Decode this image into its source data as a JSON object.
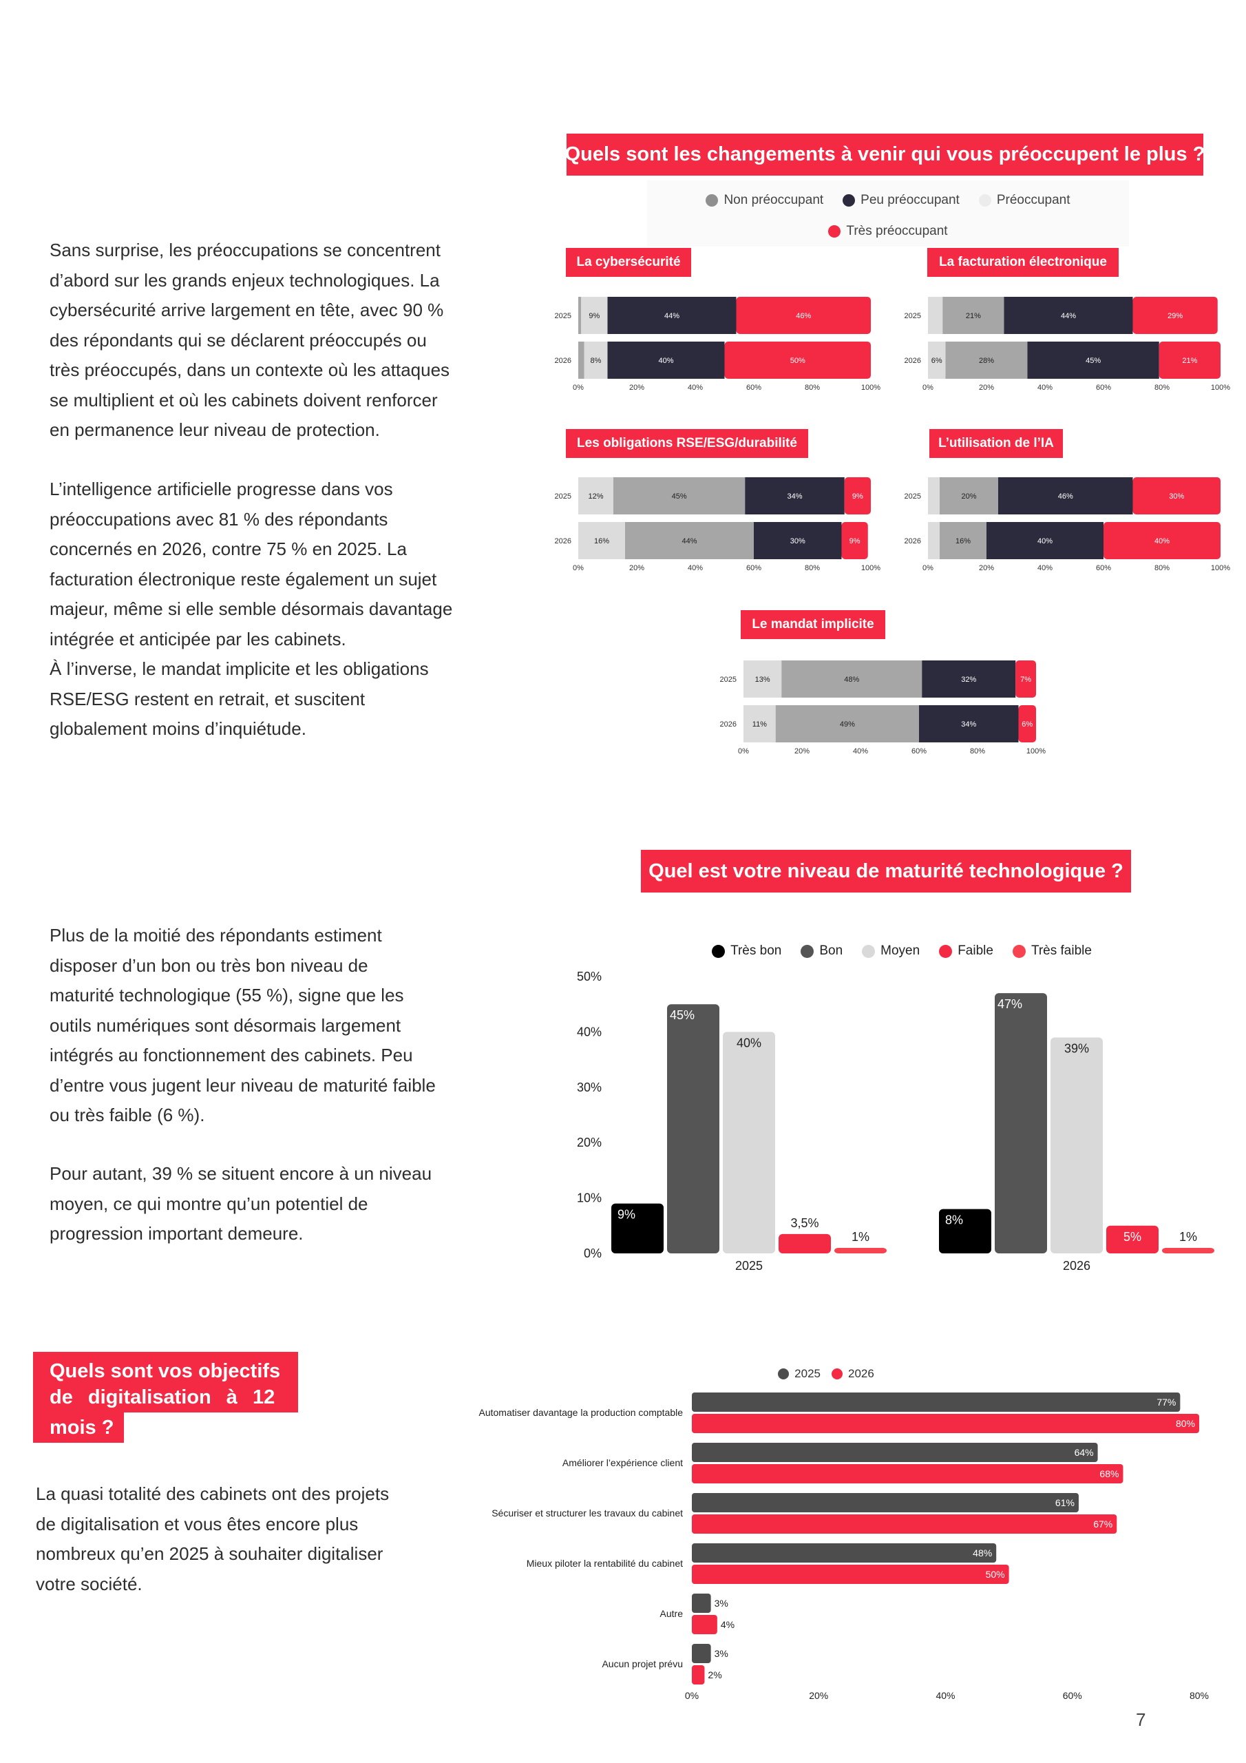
{
  "colors": {
    "accent": "#f42a45",
    "non_preoccupant": "#a6a6a6",
    "peu_preoccupant": "#2b2b3d",
    "preoccupant": "#dcdcdc",
    "tres_preoccupant": "#f42a45"
  },
  "section1": {
    "paragraph1": "Sans surprise, les préoccupations se concentrent\nd’abord sur les grands enjeux technologiques. La\ncybersécurité arrive largement en tête, avec 90 %\ndes répondants qui se déclarent préoccupés ou\ntrès préoccupés, dans un contexte où les attaques\nse multiplient et où les cabinets doivent renforcer\nen permanence leur niveau de protection.",
    "paragraph2": "L’intelligence artificielle progresse dans vos\npréoccupations avec 81 % des répondants\nconcernés en 2026, contre 75 % en 2025. La\nfacturation électronique reste également un sujet\nmajeur, même si elle semble désormais davantage\nintégrée et anticipée par les cabinets.\nÀ l’inverse, le mandat implicite et les obligations\nRSE/ESG restent en retrait, et suscitent\nglobalement moins d’inquiétude.",
    "question": "Quels sont les changements à venir qui vous préoccupent le plus ?",
    "legend": [
      "Non préoccupant",
      "Peu préoccupant",
      "Préoccupant",
      "Très préoccupant"
    ]
  },
  "section2": {
    "paragraph1": "Plus de la moitié des répondants estiment\ndisposer d’un bon ou très bon niveau de\nmaturité technologique (55 %), signe que les\noutils numériques sont désormais largement\nintégrés au fonctionnement des cabinets. Peu\nd’entre vous jugent leur niveau de maturité faible\nou très faible (6 %).",
    "paragraph2": "Pour autant, 39 % se situent encore à un niveau\nmoyen, ce qui montre qu’un potentiel de\nprogression important demeure.",
    "question": "Quel est votre niveau de maturité technologique ?"
  },
  "section3": {
    "question_line1": "Quels sont vos objectifs",
    "question_line2": "de digitalisation à 12",
    "question_line3": "mois ?",
    "paragraph": "La quasi totalité des cabinets ont des projets\nde digitalisation et vous êtes encore plus\nnombreux qu’en 2025 à souhaiter digitaliser\nvotre société."
  },
  "page_number": "7",
  "chart_data": [
    {
      "type": "bar",
      "orientation": "horizontal-stacked-100",
      "title": "La cybersécurité",
      "categories": [
        "2025",
        "2026"
      ],
      "series": [
        {
          "name": "Non préoccupant",
          "values": [
            1,
            2
          ]
        },
        {
          "name": "Préoccupant",
          "values": [
            9,
            8
          ]
        },
        {
          "name": "Peu préoccupant",
          "values": [
            44,
            40
          ]
        },
        {
          "name": "Très préoccupant",
          "values": [
            46,
            50
          ]
        }
      ],
      "labels": [
        [
          "",
          "9%",
          "44%",
          "46%"
        ],
        [
          "",
          "8%",
          "40%",
          "50%"
        ]
      ],
      "xticks": [
        "0%",
        "20%",
        "40%",
        "60%",
        "80%",
        "100%"
      ]
    },
    {
      "type": "bar",
      "orientation": "horizontal-stacked-100",
      "title": "La facturation électronique",
      "categories": [
        "2025",
        "2026"
      ],
      "series": [
        {
          "name": "Préoccupant",
          "values": [
            5,
            6
          ]
        },
        {
          "name": "Non préoccupant",
          "values": [
            21,
            28
          ]
        },
        {
          "name": "Peu préoccupant",
          "values": [
            44,
            45
          ]
        },
        {
          "name": "Très préoccupant",
          "values": [
            29,
            21
          ]
        }
      ],
      "labels": [
        [
          "",
          "21%",
          "44%",
          "29%"
        ],
        [
          "6%",
          "28%",
          "45%",
          "21%"
        ]
      ],
      "xticks": [
        "0%",
        "20%",
        "40%",
        "60%",
        "80%",
        "100%"
      ]
    },
    {
      "type": "bar",
      "orientation": "horizontal-stacked-100",
      "title": "Les obligations RSE/ESG/durabilité",
      "categories": [
        "2025",
        "2026"
      ],
      "series": [
        {
          "name": "Préoccupant",
          "values": [
            12,
            16
          ]
        },
        {
          "name": "Non préoccupant",
          "values": [
            45,
            44
          ]
        },
        {
          "name": "Peu préoccupant",
          "values": [
            34,
            30
          ]
        },
        {
          "name": "Très préoccupant",
          "values": [
            9,
            9
          ]
        }
      ],
      "labels": [
        [
          "12%",
          "45%",
          "34%",
          "9%"
        ],
        [
          "16%",
          "44%",
          "30%",
          "9%"
        ]
      ],
      "xticks": [
        "0%",
        "20%",
        "40%",
        "60%",
        "80%",
        "100%"
      ]
    },
    {
      "type": "bar",
      "orientation": "horizontal-stacked-100",
      "title": "L’utilisation de l’IA",
      "categories": [
        "2025",
        "2026"
      ],
      "series": [
        {
          "name": "Préoccupant",
          "values": [
            4,
            4
          ]
        },
        {
          "name": "Non préoccupant",
          "values": [
            20,
            16
          ]
        },
        {
          "name": "Peu préoccupant",
          "values": [
            46,
            40
          ]
        },
        {
          "name": "Très préoccupant",
          "values": [
            30,
            40
          ]
        }
      ],
      "labels": [
        [
          "",
          "20%",
          "46%",
          "30%"
        ],
        [
          "",
          "16%",
          "40%",
          "40%"
        ]
      ],
      "xticks": [
        "0%",
        "20%",
        "40%",
        "60%",
        "80%",
        "100%"
      ]
    },
    {
      "type": "bar",
      "orientation": "horizontal-stacked-100",
      "title": "Le mandat implicite",
      "categories": [
        "2025",
        "2026"
      ],
      "series": [
        {
          "name": "Préoccupant",
          "values": [
            13,
            11
          ]
        },
        {
          "name": "Non préoccupant",
          "values": [
            48,
            49
          ]
        },
        {
          "name": "Peu préoccupant",
          "values": [
            32,
            34
          ]
        },
        {
          "name": "Très préoccupant",
          "values": [
            7,
            6
          ]
        }
      ],
      "labels": [
        [
          "13%",
          "48%",
          "32%",
          "7%"
        ],
        [
          "11%",
          "49%",
          "34%",
          "6%"
        ]
      ],
      "xticks": [
        "0%",
        "20%",
        "40%",
        "60%",
        "80%",
        "100%"
      ]
    },
    {
      "type": "bar",
      "orientation": "vertical-grouped",
      "categories": [
        "2025",
        "2026"
      ],
      "series": [
        {
          "name": "Très bon",
          "color": "#000000",
          "values": [
            9,
            8
          ],
          "labels": [
            "9%",
            "8%"
          ]
        },
        {
          "name": "Bon",
          "color": "#555555",
          "values": [
            45,
            47
          ],
          "labels": [
            "45%",
            "47%"
          ]
        },
        {
          "name": "Moyen",
          "color": "#d9d9d9",
          "values": [
            40,
            39
          ],
          "labels": [
            "40%",
            "39%"
          ]
        },
        {
          "name": "Faible",
          "color": "#f42a45",
          "values": [
            3.5,
            5
          ],
          "labels": [
            "3,5%",
            "5%"
          ]
        },
        {
          "name": "Très faible",
          "color": "#f7434f",
          "values": [
            1,
            1
          ],
          "labels": [
            "1%",
            "1%"
          ]
        }
      ],
      "yticks": [
        "0%",
        "10%",
        "20%",
        "30%",
        "40%",
        "50%"
      ],
      "ylim": [
        0,
        50
      ]
    },
    {
      "type": "bar",
      "orientation": "horizontal-grouped",
      "categories": [
        "Automatiser davantage la production comptable",
        "Améliorer l’expérience client",
        "Sécuriser et structurer les travaux du cabinet",
        "Mieux piloter la rentabilité du cabinet",
        "Autre",
        "Aucun projet prévu"
      ],
      "series": [
        {
          "name": "2025",
          "color": "#4d4d4d",
          "values": [
            77,
            64,
            61,
            48,
            3,
            3
          ],
          "labels": [
            "77%",
            "64%",
            "61%",
            "48%",
            "3%",
            "3%"
          ]
        },
        {
          "name": "2026",
          "color": "#f42a45",
          "values": [
            80,
            68,
            67,
            50,
            4,
            2
          ],
          "labels": [
            "80%",
            "68%",
            "67%",
            "50%",
            "4%",
            "2%"
          ]
        }
      ],
      "xticks": [
        "0%",
        "20%",
        "40%",
        "60%",
        "80%"
      ],
      "xlim": [
        0,
        80
      ]
    }
  ]
}
